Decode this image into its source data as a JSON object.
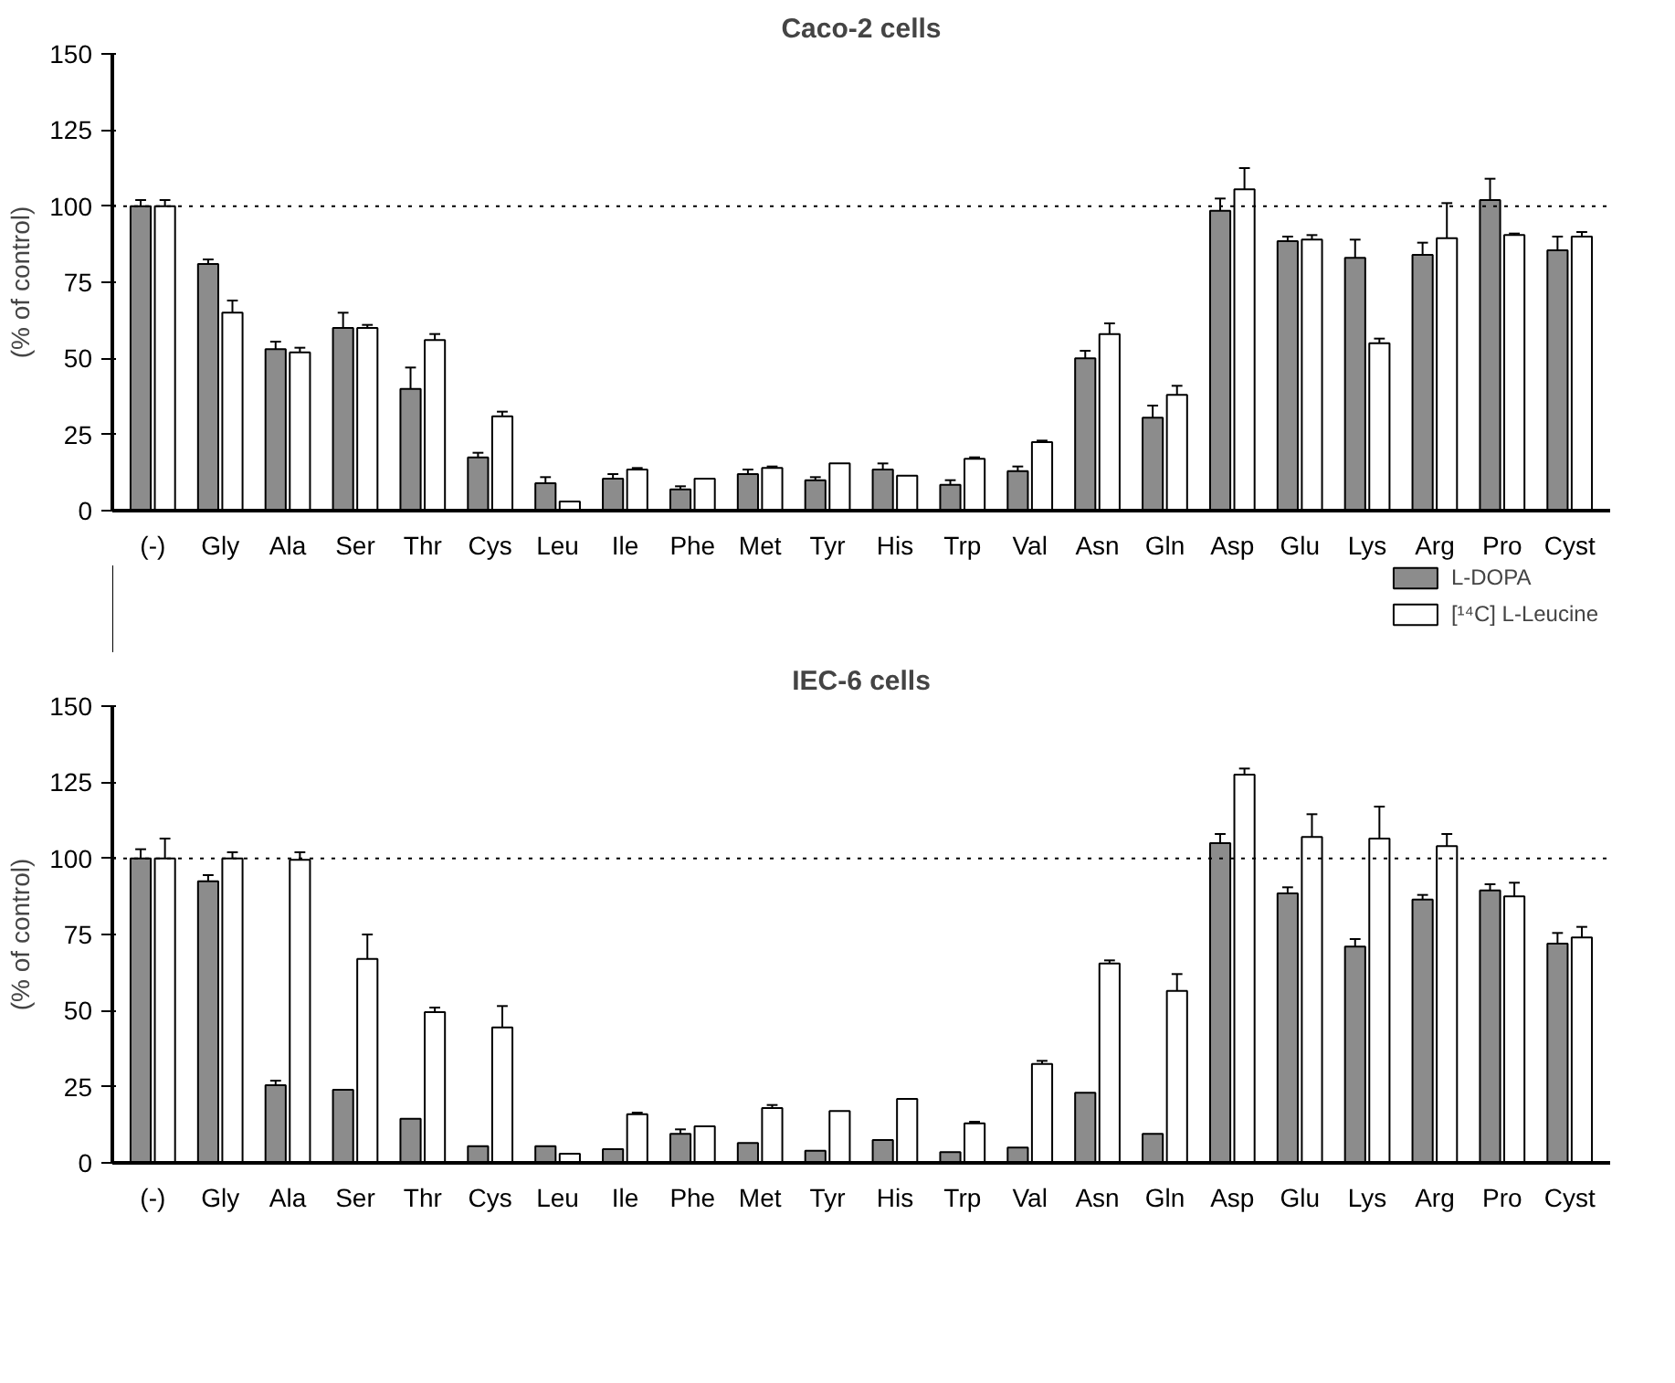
{
  "chart_data": [
    {
      "type": "bar",
      "title": "Caco-2 cells",
      "ylabel": "(% of control)",
      "categories": [
        "(-)",
        "Gly",
        "Ala",
        "Ser",
        "Thr",
        "Cys",
        "Leu",
        "Ile",
        "Phe",
        "Met",
        "Tyr",
        "His",
        "Trp",
        "Val",
        "Asn",
        "Gln",
        "Asp",
        "Glu",
        "Lys",
        "Arg",
        "Pro",
        "Cyst"
      ],
      "ylim": [
        0,
        150
      ],
      "yticks": [
        0,
        25,
        50,
        75,
        100,
        125,
        150
      ],
      "grid": false,
      "legend": false,
      "ref_lines": [
        {
          "axis": "y",
          "value": 100,
          "line_style": "dotted"
        }
      ],
      "series": [
        {
          "color": "#8c8c8c",
          "values": [
            100,
            81,
            53,
            60,
            40,
            17.5,
            9,
            10.5,
            7,
            12,
            10,
            13.5,
            8.5,
            13,
            50,
            30.5,
            98.5,
            88.5,
            83,
            84,
            102,
            85.5
          ],
          "errors": [
            [
              100,
              102
            ],
            [
              81,
              82.5
            ],
            [
              53,
              55.5
            ],
            [
              60,
              65
            ],
            [
              40,
              47
            ],
            [
              17.5,
              19
            ],
            [
              9,
              11
            ],
            [
              10.5,
              12
            ],
            [
              7,
              8
            ],
            [
              12,
              13.5
            ],
            [
              10,
              11
            ],
            [
              13.5,
              15.5
            ],
            [
              8.5,
              10
            ],
            [
              13,
              14.5
            ],
            [
              50,
              52.5
            ],
            [
              30.5,
              34.5
            ],
            [
              98.5,
              102.5
            ],
            [
              88.5,
              90
            ],
            [
              83,
              89
            ],
            [
              84,
              88
            ],
            [
              102,
              109
            ],
            [
              85.5,
              90
            ]
          ]
        },
        {
          "color": "#ffffff",
          "values": [
            100,
            65,
            52,
            60,
            56,
            31,
            3,
            13.5,
            10.5,
            14,
            15.5,
            11.5,
            17,
            22.5,
            58,
            38,
            105.5,
            89,
            55,
            89.5,
            90.5,
            90
          ],
          "errors": [
            [
              100,
              102
            ],
            [
              65,
              69
            ],
            [
              52,
              53.5
            ],
            [
              60,
              61
            ],
            [
              56,
              58
            ],
            [
              31,
              32.5
            ],
            null,
            [
              13.5,
              14
            ],
            null,
            [
              14,
              14.5
            ],
            null,
            null,
            [
              17,
              17.5
            ],
            [
              22.5,
              23
            ],
            [
              58,
              61.5
            ],
            [
              38,
              41
            ],
            [
              105.5,
              112.5
            ],
            [
              89,
              90.5
            ],
            [
              55,
              56.5
            ],
            [
              89.5,
              101
            ],
            [
              90.5,
              91
            ],
            [
              90,
              91.5
            ]
          ]
        }
      ]
    },
    {
      "type": "bar",
      "title": "IEC-6 cells",
      "ylabel": "(% of control)",
      "categories": [
        "(-)",
        "Gly",
        "Ala",
        "Ser",
        "Thr",
        "Cys",
        "Leu",
        "Ile",
        "Phe",
        "Met",
        "Tyr",
        "His",
        "Trp",
        "Val",
        "Asn",
        "Gln",
        "Asp",
        "Glu",
        "Lys",
        "Arg",
        "Pro",
        "Cyst"
      ],
      "ylim": [
        0,
        150
      ],
      "yticks": [
        0,
        25,
        50,
        75,
        100,
        125,
        150
      ],
      "grid": false,
      "legend": "top right",
      "ref_lines": [
        {
          "axis": "y",
          "value": 100,
          "line_style": "dotted"
        }
      ],
      "series": [
        {
          "name": "L-DOPA",
          "color": "#8c8c8c",
          "values": [
            100,
            92.5,
            25.5,
            24,
            14.5,
            5.5,
            5.5,
            4.5,
            9.5,
            6.5,
            4,
            7.5,
            3.5,
            5,
            23,
            9.5,
            105,
            88.5,
            71,
            86.5,
            89.5,
            72
          ],
          "errors": [
            [
              100,
              103
            ],
            [
              92.5,
              94.5
            ],
            [
              25.5,
              27
            ],
            null,
            null,
            null,
            null,
            null,
            [
              9.5,
              11
            ],
            null,
            null,
            null,
            null,
            null,
            null,
            null,
            [
              105,
              108
            ],
            [
              88.5,
              90.5
            ],
            [
              71,
              73.5
            ],
            [
              86.5,
              88
            ],
            [
              89.5,
              91.5
            ],
            [
              72,
              75.5
            ]
          ]
        },
        {
          "name": "[¹⁴C] L-Leucine",
          "color": "#ffffff",
          "values": [
            100,
            100,
            99.5,
            67,
            49.5,
            44.5,
            3,
            16,
            12,
            18,
            17,
            21,
            13,
            32.5,
            65.5,
            56.5,
            127.5,
            107,
            106.5,
            104,
            87.5,
            74
          ],
          "errors": [
            [
              100,
              106.5
            ],
            [
              100,
              102
            ],
            [
              99.5,
              102
            ],
            [
              67,
              75
            ],
            [
              49.5,
              51
            ],
            [
              44.5,
              51.5
            ],
            null,
            [
              16,
              16.5
            ],
            null,
            [
              18,
              19
            ],
            null,
            null,
            [
              13,
              13.5
            ],
            [
              32.5,
              33.5
            ],
            [
              65.5,
              66.5
            ],
            [
              56.5,
              62
            ],
            [
              127.5,
              129.5
            ],
            [
              107,
              114.5
            ],
            [
              106.5,
              117
            ],
            [
              104,
              108
            ],
            [
              87.5,
              92
            ],
            [
              74,
              77.5
            ]
          ]
        }
      ]
    }
  ]
}
